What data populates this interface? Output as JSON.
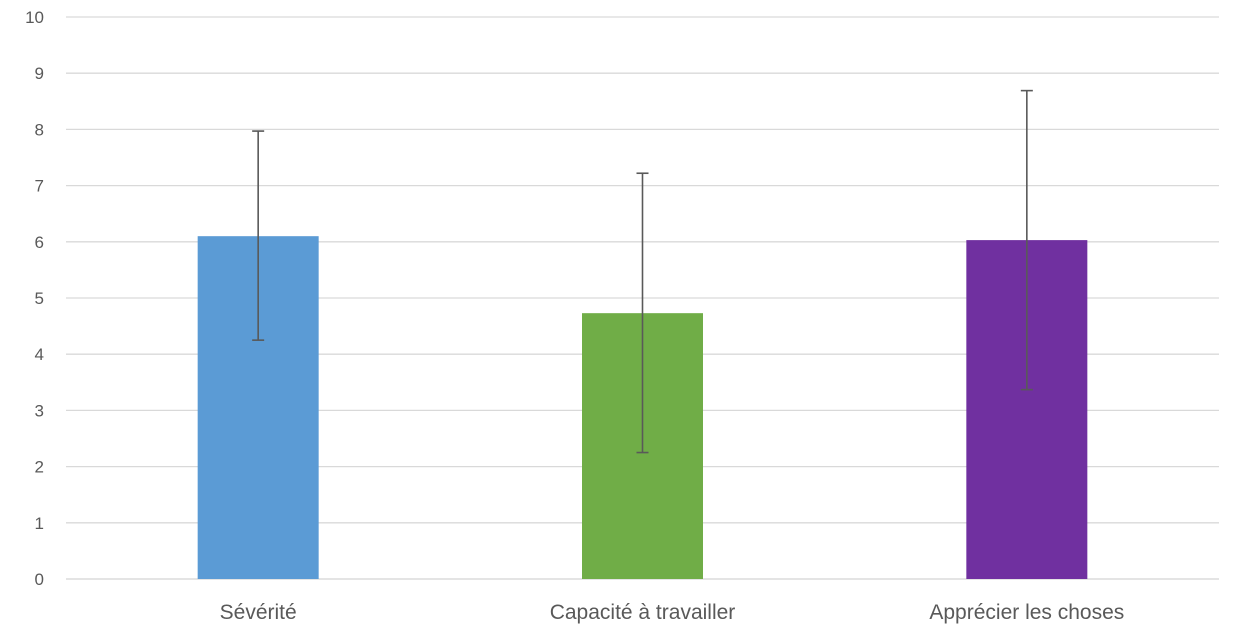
{
  "chart_data": {
    "type": "bar",
    "title": "",
    "xlabel": "",
    "ylabel": "",
    "ylim": [
      0,
      10
    ],
    "yticks": [
      0,
      1,
      2,
      3,
      4,
      5,
      6,
      7,
      8,
      9,
      10
    ],
    "yticks_labels": [
      "0",
      "1",
      "2",
      "3",
      "4",
      "5",
      "6",
      "7",
      "8",
      "9",
      "10"
    ],
    "grid": true,
    "legend": "none",
    "categories": [
      "Sévérité",
      "Capacité à travailler",
      "Apprécier les choses"
    ],
    "values": [
      6.1,
      4.73,
      6.03
    ],
    "error_low": [
      4.25,
      2.25,
      3.37
    ],
    "error_high": [
      7.97,
      7.22,
      8.69
    ],
    "colors": [
      "#5B9BD5",
      "#70AD47",
      "#7030A0"
    ],
    "gridline_color": "#D9D9D9",
    "errorbar_color": "#595959",
    "text_color": "#595959"
  }
}
